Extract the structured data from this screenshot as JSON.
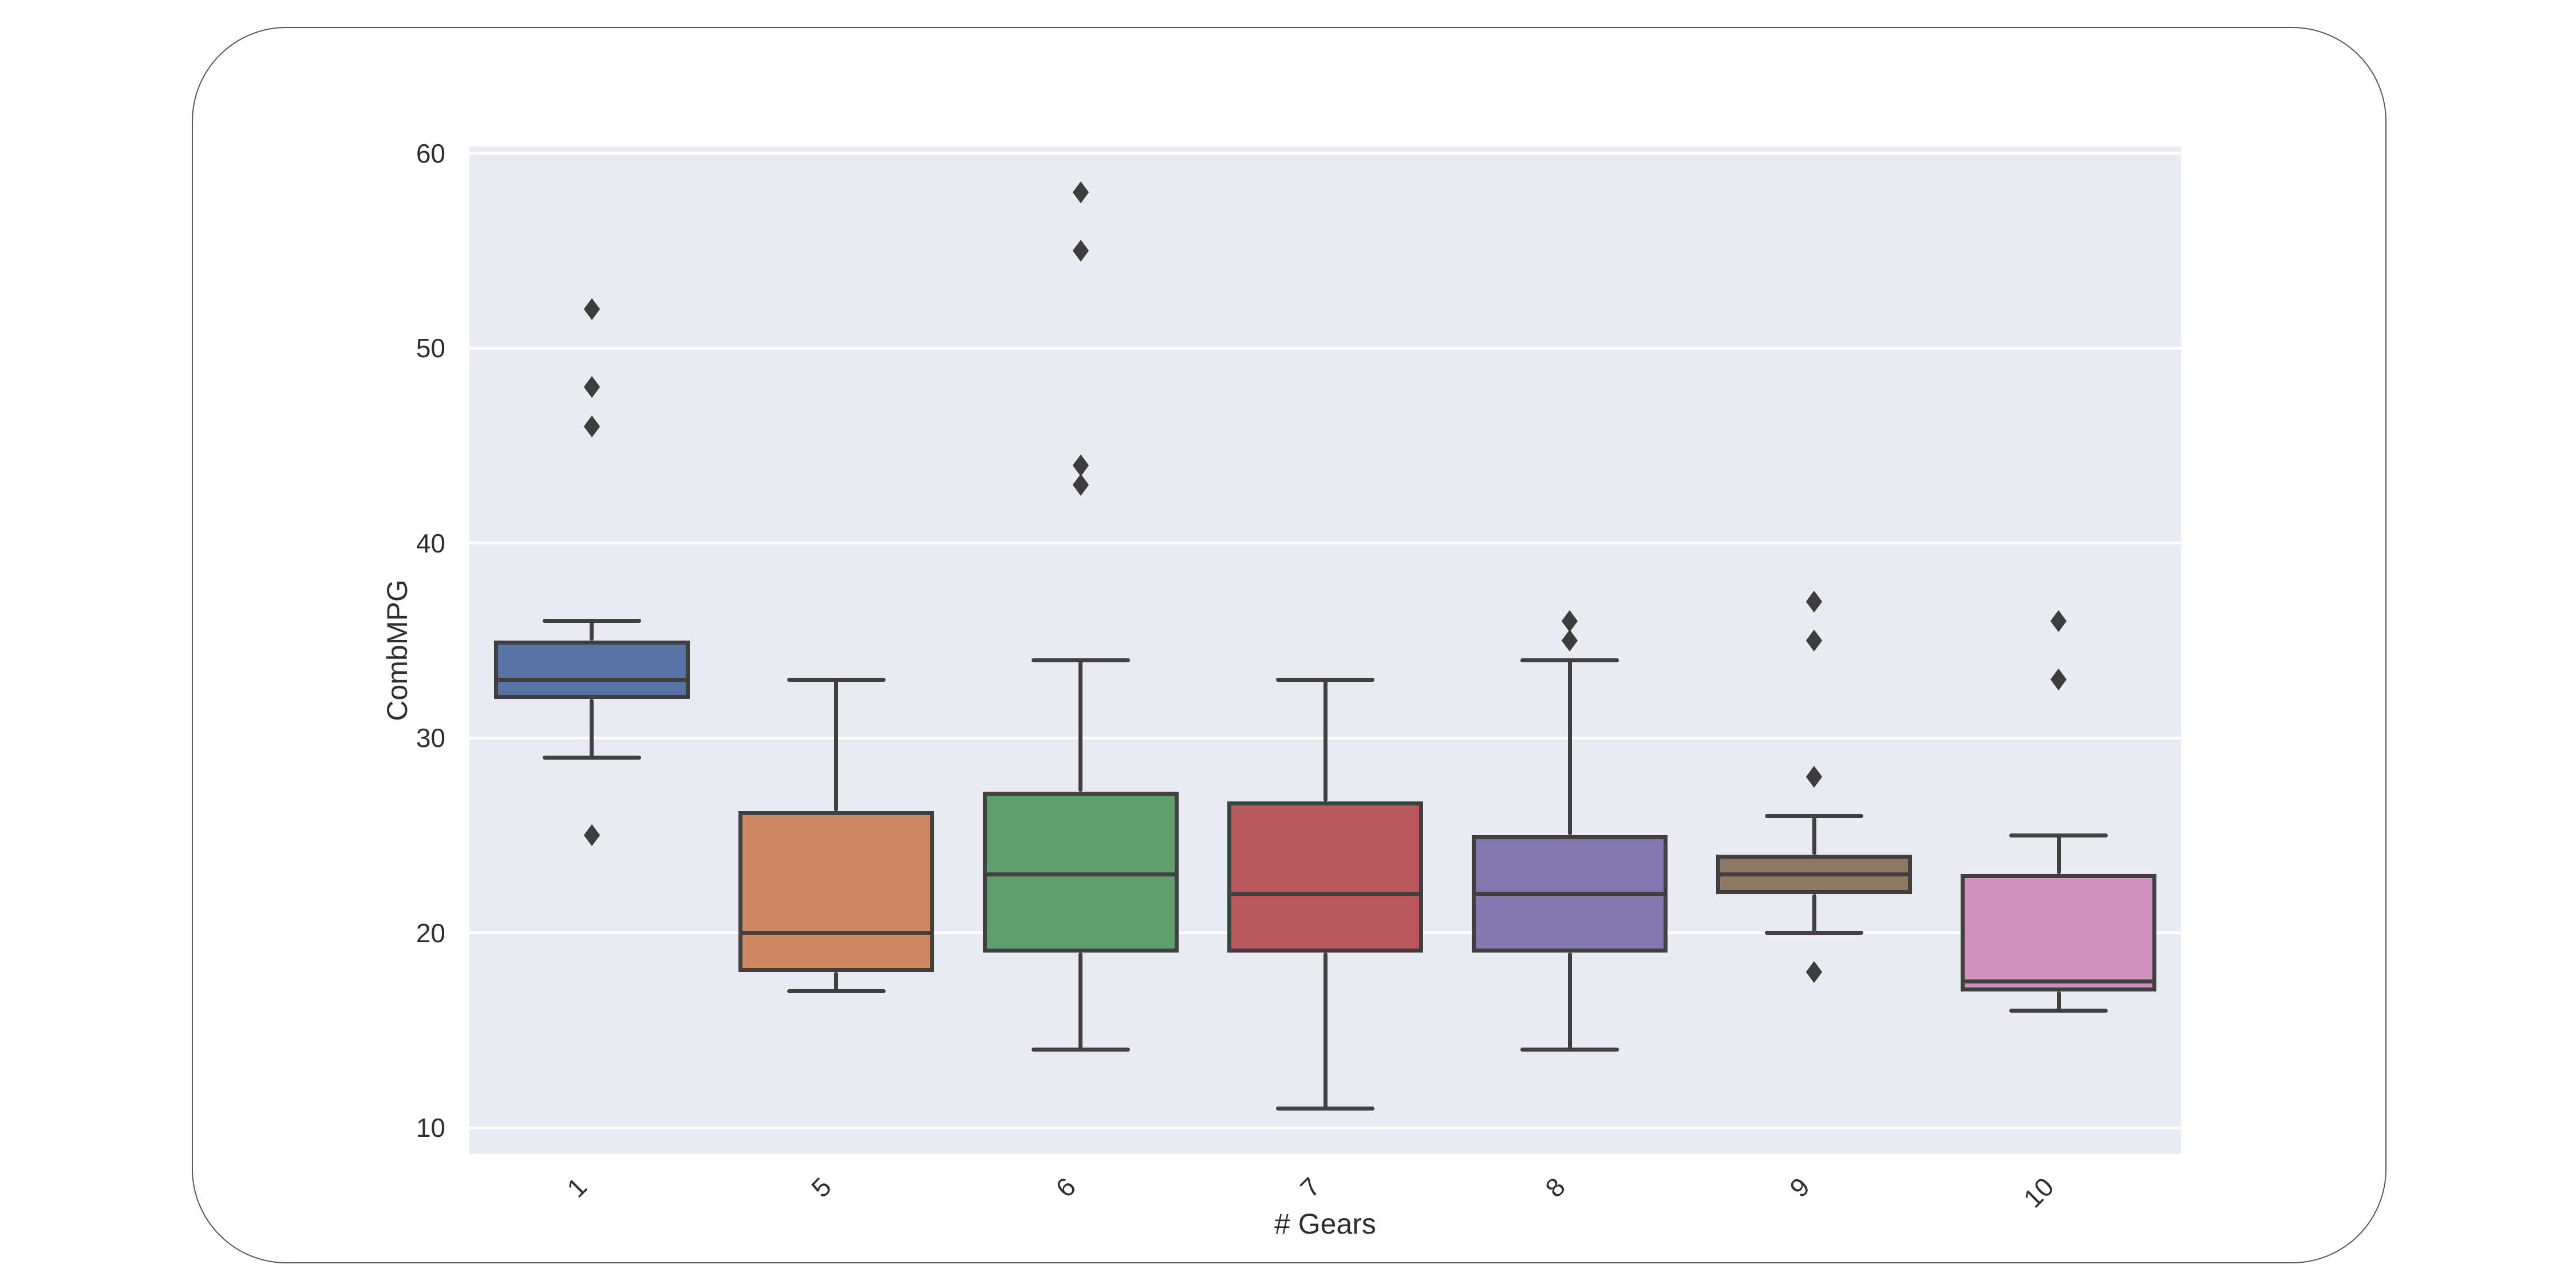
{
  "chart_data": {
    "type": "box",
    "title": "",
    "xlabel": "# Gears",
    "ylabel": "CombMPG",
    "categories": [
      "1",
      "5",
      "6",
      "7",
      "8",
      "9",
      "10"
    ],
    "yticks": [
      10,
      20,
      30,
      40,
      50,
      60
    ],
    "ylim": [
      8.65,
      60.35
    ],
    "grid": true,
    "legend_position": "none",
    "boxes": [
      {
        "category": "1",
        "whisker_low": 29,
        "q1": 32,
        "median": 33,
        "q3": 35,
        "whisker_high": 36,
        "outliers": [
          25,
          46,
          48,
          52
        ],
        "color": "#5873A6"
      },
      {
        "category": "5",
        "whisker_low": 17,
        "q1": 18,
        "median": 20,
        "q3": 26.25,
        "whisker_high": 33,
        "outliers": [],
        "color": "#CC8963"
      },
      {
        "category": "6",
        "whisker_low": 14,
        "q1": 19,
        "median": 23,
        "q3": 27.25,
        "whisker_high": 34,
        "outliers": [
          43,
          44,
          55,
          58
        ],
        "color": "#609E6F"
      },
      {
        "category": "7",
        "whisker_low": 11,
        "q1": 19,
        "median": 22,
        "q3": 26.75,
        "whisker_high": 33,
        "outliers": [],
        "color": "#B85A5D"
      },
      {
        "category": "8",
        "whisker_low": 14,
        "q1": 19,
        "median": 22,
        "q3": 25,
        "whisker_high": 34,
        "outliers": [
          35,
          36
        ],
        "color": "#8477AD"
      },
      {
        "category": "9",
        "whisker_low": 20,
        "q1": 22,
        "median": 23,
        "q3": 24,
        "whisker_high": 26,
        "outliers": [
          18,
          28,
          35,
          37
        ],
        "color": "#8D7A66"
      },
      {
        "category": "10",
        "whisker_low": 16,
        "q1": 17,
        "median": 17.5,
        "q3": 23,
        "whisker_high": 25,
        "outliers": [
          33,
          36
        ],
        "color": "#D093BF"
      }
    ]
  },
  "style": {
    "plot_bg": "#EAEAF2",
    "grid_color": "#FFFFFF",
    "line_color": "#404040",
    "flier_color": "#3D3D3D",
    "text_color": "#2E2E2E",
    "card_border": "#595959"
  }
}
